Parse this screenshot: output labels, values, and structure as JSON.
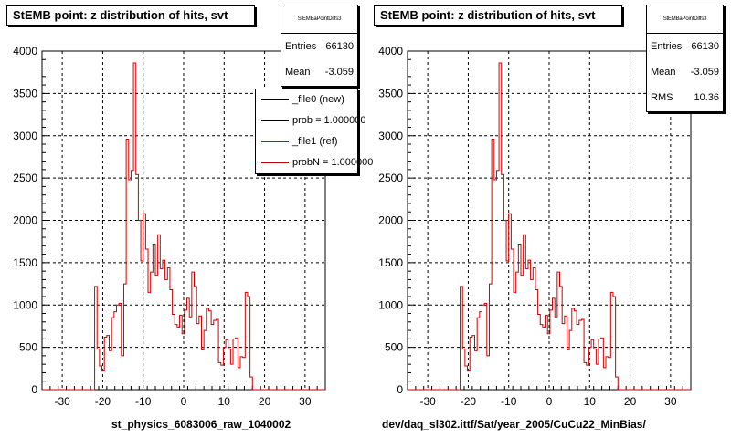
{
  "chart_data": [
    {
      "type": "histogram",
      "title": "StEMB point: z distribution of hits, svt",
      "xlabel": "st_physics_6083006_raw_1040002",
      "xlim": [
        -35,
        35
      ],
      "ylim": [
        0,
        4000
      ],
      "x_ticks": [
        -30,
        -20,
        -10,
        0,
        10,
        20,
        30
      ],
      "y_ticks": [
        0,
        500,
        1000,
        1500,
        2000,
        2500,
        3000,
        3500,
        4000
      ],
      "grid": true,
      "bin_edges_start": -22.0,
      "bin_width": 0.6,
      "series_color": "#cc0000",
      "values": [
        1220,
        480,
        280,
        220,
        620,
        640,
        460,
        850,
        920,
        1000,
        1020,
        400,
        1250,
        2960,
        2480,
        2590,
        3860,
        2540,
        2000,
        1520,
        2080,
        1660,
        1150,
        1390,
        1720,
        1350,
        1830,
        1430,
        1530,
        1300,
        1440,
        1180,
        890,
        770,
        740,
        880,
        660,
        940,
        1080,
        860,
        1390,
        1220,
        780,
        870,
        470,
        700,
        960,
        930,
        770,
        820,
        830,
        320,
        290,
        500,
        590,
        480,
        300,
        600,
        610,
        260,
        390,
        380,
        1150,
        1100,
        150
      ],
      "stats": {
        "header": "StEMBaPointDiffs3",
        "entries_label": "Entries",
        "entries": "66130",
        "mean_label": "Mean",
        "mean": "-3.059"
      },
      "legend": [
        {
          "label": "_file0 (new)",
          "color": "#000000"
        },
        {
          "label": "prob = 1.000000",
          "color": "#000000"
        },
        {
          "label": "_file1 (ref)",
          "color": "#cc0000"
        },
        {
          "label": "probN = 1.000000",
          "color": "#cc0000"
        }
      ]
    },
    {
      "type": "histogram",
      "title": "StEMB point: z distribution of hits, svt",
      "xlabel": "dev/daq_sl302.ittf/Sat/year_2005/CuCu22_MinBias/",
      "xlim": [
        -35,
        35
      ],
      "ylim": [
        0,
        4000
      ],
      "x_ticks": [
        -30,
        -20,
        -10,
        0,
        10,
        20,
        30
      ],
      "y_ticks": [
        0,
        500,
        1000,
        1500,
        2000,
        2500,
        3000,
        3500,
        4000
      ],
      "grid": true,
      "bin_edges_start": -22.0,
      "bin_width": 0.6,
      "series_color": "#cc0000",
      "values": [
        1220,
        480,
        280,
        220,
        620,
        640,
        460,
        850,
        920,
        1000,
        1020,
        400,
        1250,
        2960,
        2480,
        2590,
        3860,
        2540,
        2000,
        1520,
        2080,
        1660,
        1150,
        1390,
        1720,
        1350,
        1830,
        1430,
        1530,
        1300,
        1440,
        1180,
        890,
        770,
        740,
        880,
        660,
        940,
        1080,
        860,
        1390,
        1220,
        780,
        870,
        470,
        700,
        960,
        930,
        770,
        820,
        830,
        320,
        290,
        500,
        590,
        480,
        300,
        600,
        610,
        260,
        390,
        380,
        1150,
        1100,
        150
      ],
      "stats": {
        "header": "StEMBaPointDiffs3",
        "entries_label": "Entries",
        "entries": "66130",
        "mean_label": "Mean",
        "mean": "-3.059",
        "rms_label": "RMS",
        "rms": "10.36"
      }
    }
  ]
}
